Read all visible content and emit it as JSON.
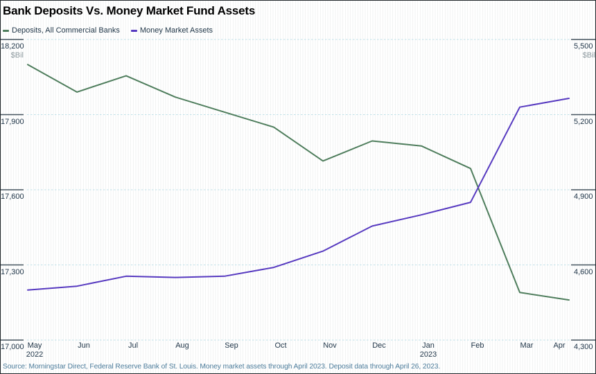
{
  "title": "Bank Deposits Vs. Money Market Fund Assets",
  "legend": {
    "deposits_label": "Deposits, All Commercial Banks",
    "money_market_label": "Money Market Assets"
  },
  "source": "Source: Morningstar Direct, Federal Reserve Bank of St. Louis. Money market assets through April 2023. Deposit data through April 26, 2023.",
  "colors": {
    "deposits_line": "#4e7d5c",
    "money_market_line": "#5639c0",
    "gridline": "#bfe0e8",
    "axis_tick": "#44535e",
    "tick_text": "#22374a",
    "unit_text": "#8e9aa0",
    "source_text": "#4c7c9b"
  },
  "chart_data": {
    "type": "line",
    "categories": [
      "May",
      "Jun",
      "Jul",
      "Aug",
      "Sep",
      "Oct",
      "Nov",
      "Dec",
      "Jan",
      "Feb",
      "Mar",
      "Apr"
    ],
    "year_labels": [
      {
        "index": 0,
        "label": "2022"
      },
      {
        "index": 8,
        "label": "2023"
      }
    ],
    "series": [
      {
        "name": "Deposits, All Commercial Banks",
        "axis": "left",
        "color": "#4e7d5c",
        "values": [
          18100,
          17990,
          18055,
          17970,
          17910,
          17850,
          17715,
          17795,
          17775,
          17685,
          17190,
          17160
        ]
      },
      {
        "name": "Money Market Assets",
        "axis": "right",
        "color": "#5639c0",
        "values": [
          4500,
          4515,
          4555,
          4550,
          4555,
          4590,
          4655,
          4755,
          4800,
          4850,
          5230,
          5265
        ]
      }
    ],
    "left_axis": {
      "unit": "$Bil",
      "min": 17000,
      "max": 18200,
      "ticks": [
        18200,
        17900,
        17600,
        17300,
        17000
      ]
    },
    "right_axis": {
      "unit": "$Bil",
      "min": 4300,
      "max": 5500,
      "ticks": [
        5500,
        5200,
        4900,
        4600,
        4300
      ]
    },
    "grid": "horizontal-dashed",
    "legend_position": "top-left"
  }
}
